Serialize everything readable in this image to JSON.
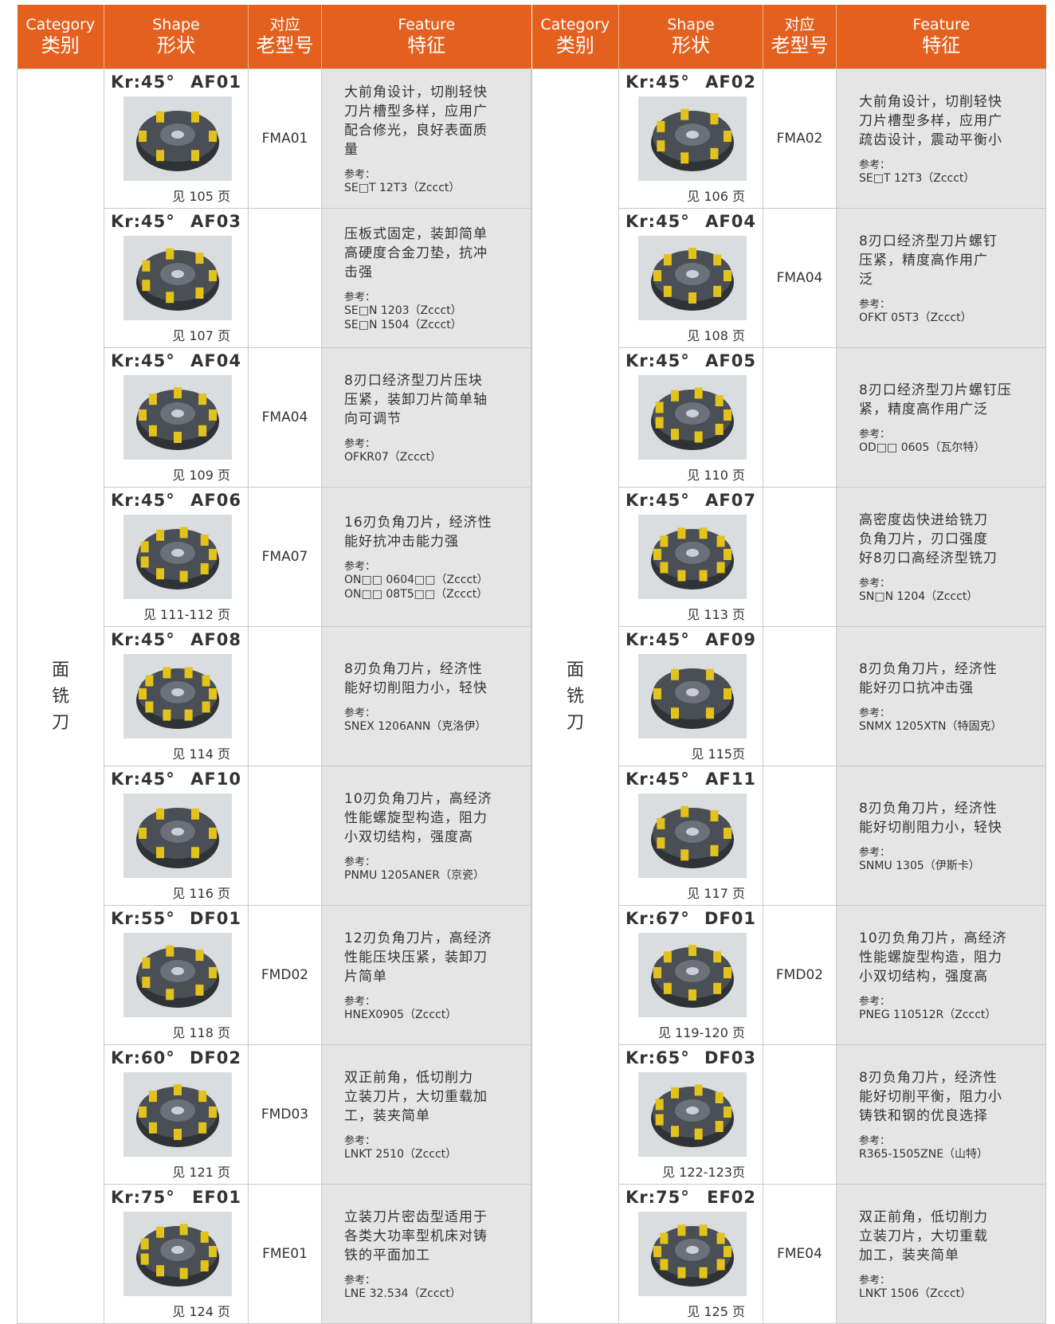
{
  "tables": [
    {
      "headers": [
        {
          "en": "Category",
          "zh": "类别"
        },
        {
          "en": "Shape",
          "zh": "形状"
        },
        {
          "en": "对应",
          "zh": "老型号"
        },
        {
          "en": "Feature",
          "zh": "特征"
        }
      ],
      "category": "面铣刀",
      "rows": [
        {
          "kr": "Kr:45°",
          "code": "AF01",
          "page": "见 105 页",
          "model": "FMA01",
          "feature": [
            "大前角设计，切削轻快",
            "刀片槽型多样，应用广",
            "配合修光，良好表面质",
            "量"
          ],
          "ref_label": "参考：",
          "refs": [
            "SE□T 12T3（Zccct）"
          ]
        },
        {
          "kr": "Kr:45°",
          "code": "AF03",
          "page": "见 107 页",
          "model": "",
          "feature": [
            "压板式固定，装卸简单",
            "高硬度合金刀垫，抗冲",
            "击强"
          ],
          "ref_label": "参考：",
          "refs": [
            "SE□N 1203（Zccct）",
            "SE□N 1504（Zccct）"
          ]
        },
        {
          "kr": "Kr:45°",
          "code": "AF04",
          "page": "见 109 页",
          "model": "FMA04",
          "feature": [
            "8刃口经济型刀片压块",
            "压紧，装卸刀片简单轴",
            "向可调节"
          ],
          "ref_label": "参考：",
          "refs": [
            "OFKR07（Zccct）"
          ]
        },
        {
          "kr": "Kr:45°",
          "code": "AF06",
          "page": "见 111-112 页",
          "model": "FMA07",
          "feature": [
            "16刃负角刀片，经济性",
            "能好抗冲击能力强"
          ],
          "ref_label": "参考：",
          "refs": [
            "ON□□ 0604□□（Zccct）",
            "ON□□ 08T5□□（Zccct）"
          ]
        },
        {
          "kr": "Kr:45°",
          "code": "AF08",
          "page": "见 114 页",
          "model": "",
          "feature": [
            "8刃负角刀片，经济性",
            "能好切削阻力小，轻快"
          ],
          "ref_label": "参考：",
          "refs": [
            "SNEX 1206ANN（克洛伊）"
          ]
        },
        {
          "kr": "Kr:45°",
          "code": "AF10",
          "page": "见 116 页",
          "model": "",
          "feature": [
            "10刃负角刀片，高经济",
            "性能螺旋型构造，阻力",
            "小双切结构，强度高"
          ],
          "ref_label": "参考：",
          "refs": [
            "PNMU 1205ANER（京瓷）"
          ]
        },
        {
          "kr": "Kr:55°",
          "code": "DF01",
          "page": "见 118 页",
          "model": "FMD02",
          "feature": [
            "12刃负角刀片，高经济",
            "性能压块压紧，装卸刀",
            "片简单"
          ],
          "ref_label": "参考：",
          "refs": [
            "HNEX0905（Zccct）"
          ]
        },
        {
          "kr": "Kr:60°",
          "code": "DF02",
          "page": "见 121 页",
          "model": "FMD03",
          "feature": [
            "双正前角，低切削力",
            "立装刀片，大切重载加",
            "工，装夹简单"
          ],
          "ref_label": "参考：",
          "refs": [
            "LNKT 2510（Zccct）"
          ]
        },
        {
          "kr": "Kr:75°",
          "code": "EF01",
          "page": "见 124 页",
          "model": "FME01",
          "feature": [
            "立装刀片密齿型适用于",
            "各类大功率型机床对铸",
            "铁的平面加工"
          ],
          "ref_label": "参考：",
          "refs": [
            "LNE 32.534（Zccct）"
          ]
        }
      ]
    },
    {
      "headers": [
        {
          "en": "Category",
          "zh": "类别"
        },
        {
          "en": "Shape",
          "zh": "形状"
        },
        {
          "en": "对应",
          "zh": "老型号"
        },
        {
          "en": "Feature",
          "zh": "特征"
        }
      ],
      "category": "面铣刀",
      "rows": [
        {
          "kr": "Kr:45°",
          "code": "AF02",
          "page": "见 106 页",
          "model": "FMA02",
          "feature": [
            "大前角设计，切削轻快",
            "刀片槽型多样，应用广",
            "疏齿设计，震动平衡小"
          ],
          "ref_label": "参考：",
          "refs": [
            "SE□T 12T3（Zccct）"
          ]
        },
        {
          "kr": "Kr:45°",
          "code": "AF04",
          "page": "见 108 页",
          "model": "FMA04",
          "feature": [
            "8刃口经济型刀片螺钉",
            "压紧，精度高作用广",
            "泛"
          ],
          "ref_label": "参考：",
          "refs": [
            "OFKT 05T3（Zccct）"
          ]
        },
        {
          "kr": "Kr:45°",
          "code": "AF05",
          "page": "见 110 页",
          "model": "",
          "feature": [
            "8刃口经济型刀片螺钉压",
            "紧，精度高作用广泛"
          ],
          "ref_label": "参考：",
          "refs": [
            "OD□□ 0605（瓦尔特）"
          ]
        },
        {
          "kr": "Kr:45°",
          "code": "AF07",
          "page": "见 113 页",
          "model": "",
          "feature": [
            "高密度齿快进给铣刀",
            "负角刀片，刃口强度",
            "好8刃口高经济型铣刀"
          ],
          "ref_label": "参考：",
          "refs": [
            "SN□N 1204（Zccct）"
          ]
        },
        {
          "kr": "Kr:45°",
          "code": "AF09",
          "page": "见 115页",
          "model": "",
          "feature": [
            "8刃负角刀片，经济性",
            "能好刃口抗冲击强"
          ],
          "ref_label": "参考：",
          "refs": [
            "SNMX 1205XTN（特固克）"
          ]
        },
        {
          "kr": "Kr:45°",
          "code": "AF11",
          "page": "见 117 页",
          "model": "",
          "feature": [
            "8刃负角刀片，经济性",
            "能好切削阻力小，轻快"
          ],
          "ref_label": "参考：",
          "refs": [
            "SNMU 1305（伊斯卡）"
          ]
        },
        {
          "kr": "Kr:67°",
          "code": "DF01",
          "page": "见 119-120 页",
          "model": "FMD02",
          "feature": [
            "10刃负角刀片，高经济",
            "性能螺旋型构造，阻力",
            "小双切结构，强度高"
          ],
          "ref_label": "参考：",
          "refs": [
            "PNEG 110512R（Zccct）"
          ]
        },
        {
          "kr": "Kr:65°",
          "code": "DF03",
          "page": "见 122-123页",
          "model": "",
          "feature": [
            "8刃负角刀片，经济性",
            "能好切削平衡，阻力小",
            "铸铁和钢的优良选择"
          ],
          "ref_label": "参考：",
          "refs": [
            "R365-1505ZNE（山特）"
          ]
        },
        {
          "kr": "Kr:75°",
          "code": "EF02",
          "page": "见 125 页",
          "model": "FME04",
          "feature": [
            "双正前角，低切削力",
            "立装刀片，大切重载",
            "加工，装夹简单"
          ],
          "ref_label": "参考：",
          "refs": [
            "LNKT 1506（Zccct）"
          ]
        }
      ]
    }
  ]
}
